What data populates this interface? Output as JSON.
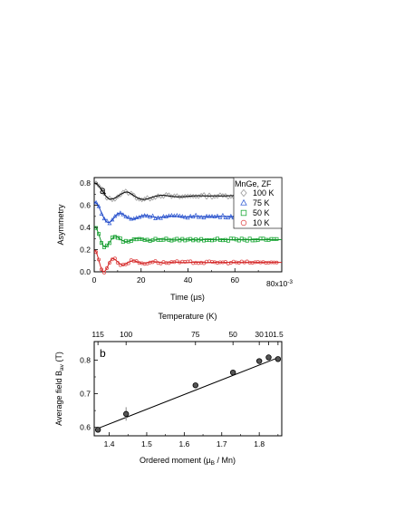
{
  "figure": {
    "colors": {
      "axis": "#000000",
      "muon_fit": "#000000"
    }
  },
  "chart_data": [
    {
      "type": "scatter",
      "panel_label": "a",
      "xlabel": "Time (µs)",
      "ylabel": "Asymmetry",
      "xlim": [
        0,
        80
      ],
      "ylim": [
        0,
        0.85
      ],
      "x_scale_label": "x10",
      "x_scale_exponent": "-3",
      "x_ticks": [
        0,
        20,
        40,
        60,
        80
      ],
      "x_tick_labels": [
        "0",
        "20",
        "40",
        "60",
        "80"
      ],
      "y_ticks": [
        0.0,
        0.2,
        0.4,
        0.6,
        0.8
      ],
      "y_tick_labels": [
        "0.0",
        "0.2",
        "0.4",
        "0.6",
        "0.8"
      ],
      "legend": {
        "title": "MnGe, ZF",
        "position": "top-right"
      },
      "series": [
        {
          "name": "100 K",
          "marker": "diamond",
          "color": "#9a9a9a",
          "fit_color": "#000000",
          "baseline": 0.69,
          "dip": 0.655,
          "peak": 0.72,
          "settle": 0.672,
          "wiggle": 0.012,
          "dip_at": 7,
          "peak_at": 14,
          "start": 0.8
        },
        {
          "name": "75 K",
          "marker": "triangle",
          "color": "#3a63d6",
          "fit_color": "#1f46c4",
          "baseline": 0.5,
          "dip": 0.445,
          "peak": 0.53,
          "settle": 0.495,
          "wiggle": 0.012,
          "dip_at": 6,
          "peak_at": 11,
          "start": 0.63
        },
        {
          "name": "50 K",
          "marker": "square",
          "color": "#1faa3a",
          "fit_color": "#15922c",
          "baseline": 0.29,
          "dip": 0.225,
          "peak": 0.32,
          "settle": 0.29,
          "wiggle": 0.01,
          "dip_at": 4.5,
          "peak_at": 9,
          "start": 0.41
        },
        {
          "name": "10 K",
          "marker": "circle",
          "color": "#e05050",
          "fit_color": "#d02020",
          "baseline": 0.085,
          "dip": 0.0,
          "peak": 0.12,
          "settle": 0.085,
          "wiggle": 0.01,
          "dip_at": 4,
          "peak_at": 8,
          "start": 0.2
        }
      ]
    },
    {
      "type": "scatter",
      "panel_label": "b",
      "xlabel": "Ordered moment (µB / Mn)",
      "xlabel_parts": [
        "Ordered moment (µ",
        "B",
        " / Mn)"
      ],
      "ylabel": "Average field Bav (T)",
      "ylabel_parts": [
        "Average field B",
        "av",
        " (T)"
      ],
      "top_xlabel": "Temperature (K)",
      "xlim": [
        1.36,
        1.86
      ],
      "ylim": [
        0.575,
        0.855
      ],
      "x_ticks": [
        1.4,
        1.5,
        1.6,
        1.7,
        1.8
      ],
      "x_tick_labels": [
        "1.4",
        "1.5",
        "1.6",
        "1.7",
        "1.8"
      ],
      "y_ticks": [
        0.6,
        0.7,
        0.8
      ],
      "y_tick_labels": [
        "0.6",
        "0.7",
        "0.8"
      ],
      "top_ticks": [
        {
          "label": "115",
          "x": 1.37
        },
        {
          "label": "100",
          "x": 1.445
        },
        {
          "label": "75",
          "x": 1.63
        },
        {
          "label": "50",
          "x": 1.73
        },
        {
          "label": "30",
          "x": 1.8
        },
        {
          "label": "10",
          "x": 1.825
        },
        {
          "label": "1.5",
          "x": 1.85
        }
      ],
      "points": [
        {
          "x": 1.37,
          "y": 0.593,
          "err": 0.008
        },
        {
          "x": 1.445,
          "y": 0.64,
          "err": 0.02
        },
        {
          "x": 1.63,
          "y": 0.725,
          "err": 0.006
        },
        {
          "x": 1.73,
          "y": 0.763,
          "err": 0.005
        },
        {
          "x": 1.8,
          "y": 0.797,
          "err": 0.005
        },
        {
          "x": 1.825,
          "y": 0.808,
          "err": 0.005
        },
        {
          "x": 1.85,
          "y": 0.803,
          "err": 0.005
        }
      ],
      "fit_line": {
        "x": [
          1.37,
          1.85
        ],
        "y": [
          0.597,
          0.807
        ]
      }
    }
  ]
}
